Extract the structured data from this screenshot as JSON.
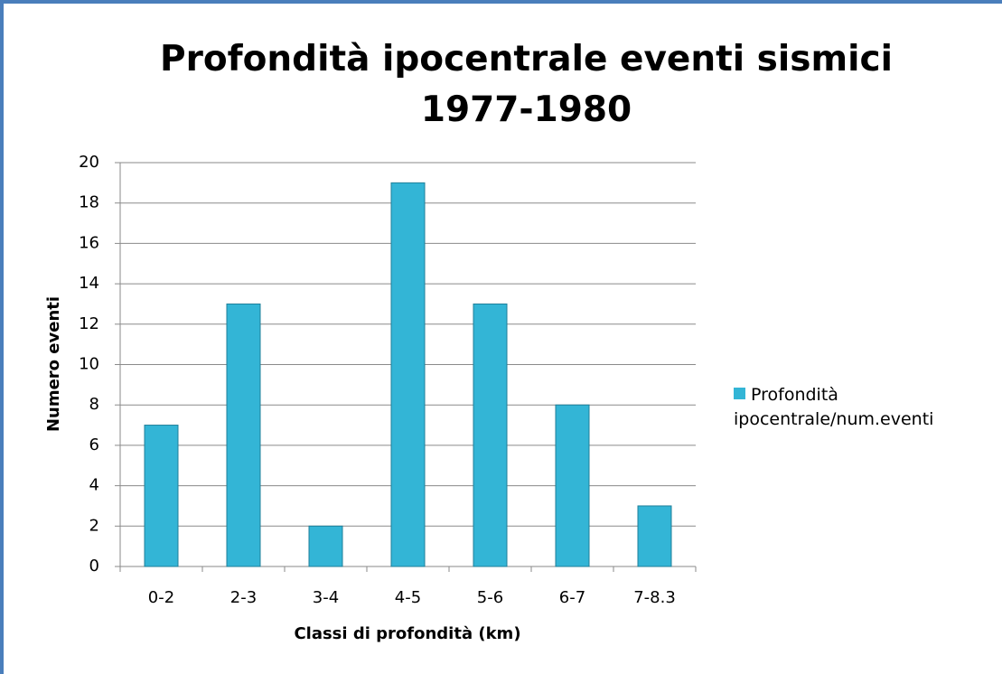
{
  "chart_data": {
    "type": "bar",
    "title": "Profondità ipocentrale eventi sismici 1977-1980",
    "x_label": "Classi di profondità (km)",
    "y_label": "Numero eventi",
    "categories": [
      "0-2",
      "2-3",
      "3-4",
      "4-5",
      "5-6",
      "6-7",
      "7-8.3"
    ],
    "series": [
      {
        "name": "Profondità ipocentrale/num.eventi",
        "color": "#33b5d6",
        "values": [
          7,
          13,
          2,
          19,
          13,
          8,
          3
        ]
      }
    ],
    "ylim": [
      0,
      20
    ],
    "yticks": [
      0,
      2,
      4,
      6,
      8,
      10,
      12,
      14,
      16,
      18,
      20
    ],
    "grid": true,
    "legend": "right"
  }
}
